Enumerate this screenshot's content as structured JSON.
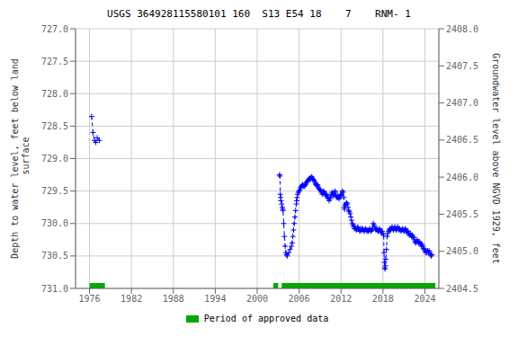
{
  "chart_data": {
    "type": "line",
    "title": "USGS 364928115580101 160  S13 E54 18    7    RNM- 1",
    "y_label": "Depth to water level, feet below land\n surface",
    "y2_label": "Groundwater level above NGVD 1929, feet",
    "xlim": [
      1974,
      2026
    ],
    "xticks": [
      1976,
      1982,
      1988,
      1994,
      2000,
      2006,
      2012,
      2018,
      2024
    ],
    "ylim": [
      731.0,
      727.0
    ],
    "yticks": [
      {
        "value": 727.0,
        "label": "727.0"
      },
      727.5,
      {
        "value": 728.0,
        "label": "728.0"
      },
      728.5,
      {
        "value": 729.0,
        "label": "729.0"
      },
      729.5,
      {
        "value": 730.0,
        "label": "730.0"
      },
      730.5,
      {
        "value": 731.0,
        "label": "731.0"
      }
    ],
    "y2lim": [
      2404.5,
      2408.0
    ],
    "y2ticks": [
      2404.5,
      {
        "value": 2405.0,
        "label": "2405.0"
      },
      2405.5,
      {
        "value": 2406.0,
        "label": "2406.0"
      },
      2406.5,
      {
        "value": 2407.0,
        "label": "2407.0"
      },
      2407.5,
      {
        "value": 2408.0,
        "label": "2408.0"
      }
    ],
    "grid": true,
    "legend": "bottom",
    "series": [
      {
        "type": "line",
        "color": "#0000ff",
        "marker": "+",
        "line_style": "dashed",
        "x": [
          1976.3,
          1976.5,
          1976.7,
          1976.9,
          1977.1,
          1977.4
        ],
        "values": [
          728.35,
          728.6,
          728.72,
          728.75,
          728.68,
          728.72
        ]
      },
      {
        "type": "line",
        "color": "#0000ff",
        "marker": "+",
        "line_style": "dashed",
        "x": [
          2003.2,
          2003.25,
          2003.3,
          2003.35,
          2003.4,
          2003.5,
          2003.6,
          2003.65,
          2003.7,
          2003.8,
          2003.9,
          2004.0,
          2004.1,
          2004.2,
          2004.3,
          2004.5,
          2004.7,
          2004.9,
          2005.0,
          2005.1,
          2005.2,
          2005.3,
          2005.4,
          2005.5,
          2005.6,
          2005.65,
          2005.7,
          2005.8,
          2005.9,
          2006.0,
          2006.1,
          2006.2,
          2006.3,
          2006.4,
          2006.5,
          2006.6,
          2006.7,
          2006.8,
          2006.9,
          2007.0,
          2007.1,
          2007.2,
          2007.3,
          2007.4,
          2007.5,
          2007.6,
          2007.7,
          2007.8,
          2007.9,
          2008.0,
          2008.1,
          2008.2,
          2008.3,
          2008.4,
          2008.5,
          2008.6,
          2008.7,
          2008.8,
          2008.9,
          2009.0,
          2009.1,
          2009.2,
          2009.3,
          2009.4,
          2009.5,
          2009.6,
          2009.7,
          2009.8,
          2009.9,
          2010.0,
          2010.1,
          2010.2,
          2010.3,
          2010.4,
          2010.5,
          2010.6,
          2010.7,
          2010.8,
          2010.9,
          2011.0,
          2011.1,
          2011.2,
          2011.3,
          2011.4,
          2011.5,
          2011.6,
          2011.7,
          2011.8,
          2011.9,
          2012.0,
          2012.1,
          2012.2,
          2012.3,
          2012.4,
          2012.45,
          2012.5,
          2012.6,
          2012.7,
          2012.8,
          2012.9,
          2013.0,
          2013.1,
          2013.2,
          2013.3,
          2013.4,
          2013.5,
          2013.6,
          2013.7,
          2013.8,
          2013.9,
          2014.0,
          2014.1,
          2014.2,
          2014.3,
          2014.4,
          2014.5,
          2014.6,
          2014.7,
          2014.8,
          2014.9,
          2015.0,
          2015.1,
          2015.2,
          2015.3,
          2015.4,
          2015.5,
          2015.6,
          2015.7,
          2015.8,
          2015.9,
          2016.0,
          2016.1,
          2016.2,
          2016.3,
          2016.4,
          2016.5,
          2016.6,
          2016.7,
          2016.8,
          2016.9,
          2017.0,
          2017.1,
          2017.2,
          2017.3,
          2017.4,
          2017.5,
          2017.6,
          2017.7,
          2017.8,
          2017.9,
          2018.0,
          2018.1,
          2018.15,
          2018.2,
          2018.25,
          2018.3,
          2018.35,
          2018.4,
          2018.5,
          2018.6,
          2018.7,
          2018.8,
          2018.9,
          2019.0,
          2019.1,
          2019.2,
          2019.3,
          2019.4,
          2019.5,
          2019.6,
          2019.7,
          2019.8,
          2019.9,
          2020.0,
          2020.1,
          2020.2,
          2020.3,
          2020.4,
          2020.5,
          2020.6,
          2020.7,
          2020.8,
          2020.9,
          2021.0,
          2021.1,
          2021.2,
          2021.3,
          2021.4,
          2021.5,
          2021.6,
          2021.7,
          2021.8,
          2021.9,
          2022.0,
          2022.1,
          2022.2,
          2022.3,
          2022.4,
          2022.5,
          2022.6,
          2022.7,
          2022.8,
          2022.9,
          2023.0,
          2023.1,
          2023.2,
          2023.3,
          2023.4,
          2023.5,
          2023.6,
          2023.7,
          2023.8,
          2023.9,
          2024.0,
          2024.1,
          2024.2,
          2024.3,
          2024.4,
          2024.5,
          2024.6,
          2024.7,
          2024.8,
          2024.9,
          2025.0
        ],
        "values": [
          729.25,
          729.27,
          729.55,
          729.6,
          729.65,
          729.7,
          729.75,
          729.78,
          729.8,
          730.0,
          730.2,
          730.35,
          730.45,
          730.48,
          730.5,
          730.45,
          730.4,
          730.35,
          730.3,
          730.2,
          730.1,
          730.0,
          729.9,
          729.8,
          729.7,
          729.65,
          729.6,
          729.55,
          729.52,
          729.5,
          729.48,
          729.45,
          729.43,
          729.42,
          729.4,
          729.42,
          729.43,
          729.42,
          729.4,
          729.38,
          729.36,
          729.35,
          729.33,
          729.32,
          729.3,
          729.32,
          729.3,
          729.28,
          729.3,
          729.32,
          729.33,
          729.35,
          729.38,
          729.4,
          729.42,
          729.4,
          729.42,
          729.45,
          729.47,
          729.48,
          729.5,
          729.52,
          729.55,
          729.52,
          729.5,
          729.52,
          729.55,
          729.57,
          729.55,
          729.57,
          729.6,
          729.62,
          729.65,
          729.62,
          729.6,
          729.55,
          729.52,
          729.55,
          729.57,
          729.55,
          729.5,
          729.52,
          729.58,
          729.6,
          729.58,
          729.6,
          729.62,
          729.6,
          729.55,
          729.57,
          729.55,
          729.5,
          729.52,
          729.6,
          729.75,
          729.78,
          729.72,
          729.7,
          729.68,
          729.7,
          729.75,
          729.8,
          729.82,
          729.85,
          729.9,
          729.95,
          730.0,
          730.02,
          730.05,
          730.08,
          730.05,
          730.08,
          730.1,
          730.08,
          730.05,
          730.08,
          730.1,
          730.12,
          730.1,
          730.08,
          730.1,
          730.08,
          730.1,
          730.12,
          730.1,
          730.08,
          730.1,
          730.12,
          730.1,
          730.12,
          730.1,
          730.08,
          730.1,
          730.12,
          730.1,
          730.08,
          730.0,
          730.02,
          730.05,
          730.08,
          730.1,
          730.08,
          730.1,
          730.12,
          730.1,
          730.08,
          730.1,
          730.12,
          730.15,
          730.12,
          730.15,
          730.18,
          730.45,
          730.6,
          730.68,
          730.7,
          730.65,
          730.55,
          730.4,
          730.2,
          730.15,
          730.12,
          730.1,
          730.08,
          730.1,
          730.08,
          730.05,
          730.08,
          730.1,
          730.08,
          730.05,
          730.08,
          730.1,
          730.08,
          730.05,
          730.08,
          730.1,
          730.08,
          730.1,
          730.12,
          730.1,
          730.08,
          730.1,
          730.12,
          730.1,
          730.08,
          730.1,
          730.12,
          730.15,
          730.12,
          730.15,
          730.18,
          730.15,
          730.18,
          730.2,
          730.18,
          730.2,
          730.22,
          730.25,
          730.28,
          730.3,
          730.28,
          730.25,
          730.28,
          730.3,
          730.28,
          730.3,
          730.32,
          730.35,
          730.32,
          730.35,
          730.38,
          730.4,
          730.42,
          730.45,
          730.42,
          730.45,
          730.42,
          730.45,
          730.42,
          730.45,
          730.48,
          730.5,
          730.48
        ]
      },
      {
        "type": "range",
        "name": "Period of approved data",
        "color": "#00aa00",
        "ranges": [
          [
            1976.0,
            1978.2
          ],
          [
            2002.3,
            2003.0
          ],
          [
            2003.5,
            2025.5
          ]
        ]
      }
    ]
  }
}
